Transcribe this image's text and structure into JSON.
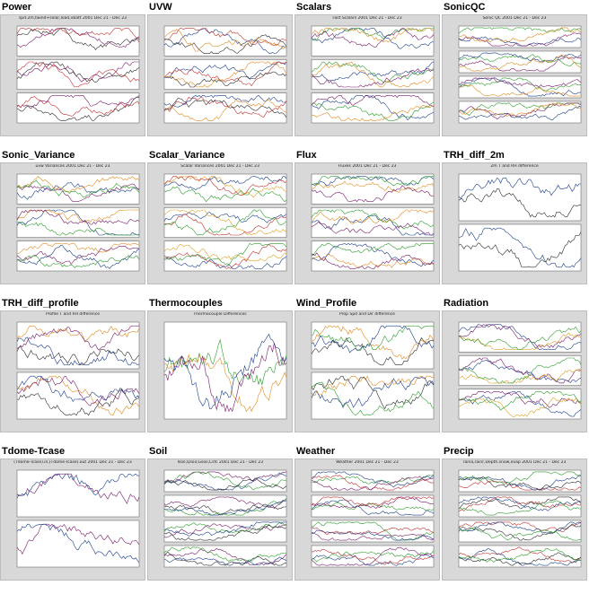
{
  "grid": {
    "columns": 4,
    "cells": [
      {
        "label": "Power",
        "plot_title": "spd.2m,twind+solar,load,vbatt 2001 Dec 21 - Dec 23",
        "panels": 3,
        "palette": [
          "#7a1a6a",
          "#2a2a2a",
          "#c03030"
        ]
      },
      {
        "label": "UVW",
        "plot_title": "",
        "panels": 3,
        "palette": [
          "#1a3d8c",
          "#c03030",
          "#2a2a2a",
          "#e08a1e"
        ]
      },
      {
        "label": "Scalars",
        "plot_title": "Fast Scalars 2001 Dec 21 - Dec 23",
        "panels": 3,
        "palette": [
          "#1a3d8c",
          "#2a9c2a",
          "#e08a1e",
          "#7a1a6a"
        ]
      },
      {
        "label": "SonicQC",
        "plot_title": "Sonic QC 2001 Dec 21 - Dec 23",
        "panels": 4,
        "palette": [
          "#2a9c2a",
          "#1a3d8c",
          "#7a1a6a",
          "#e08a1e"
        ]
      },
      {
        "label": "Sonic_Variance",
        "plot_title": "uvw Variances 2001 Dec 21 - Dec 23",
        "panels": 3,
        "palette": [
          "#1a3d8c",
          "#e08a1e",
          "#7a1a6a",
          "#2a9c2a"
        ]
      },
      {
        "label": "Scalar_Variance",
        "plot_title": "Scalar Variances 2001 Dec 21 - Dec 23",
        "panels": 3,
        "palette": [
          "#1a3d8c",
          "#e0a020",
          "#c03030",
          "#2a9c2a"
        ]
      },
      {
        "label": "Flux",
        "plot_title": "Fluxes 2001 Dec 21 - Dec 23",
        "panels": 3,
        "palette": [
          "#1a3d8c",
          "#2a9c2a",
          "#e08a1e",
          "#7a1a6a"
        ]
      },
      {
        "label": "TRH_diff_2m",
        "plot_title": "2m T and RH difference",
        "panels": 2,
        "palette": [
          "#1a3d8c",
          "#2a2a2a"
        ]
      },
      {
        "label": "TRH_diff_profile",
        "plot_title": "Profile T and RH difference",
        "panels": 2,
        "palette": [
          "#e08a1e",
          "#7a1a6a",
          "#2a2a2a",
          "#1a3d8c"
        ]
      },
      {
        "label": "Thermocouples",
        "plot_title": "Thermocouple Differences",
        "panels": 1,
        "palette": [
          "#2a9c2a",
          "#e08a1e",
          "#7a1a6a",
          "#1a3d8c"
        ]
      },
      {
        "label": "Wind_Profile",
        "plot_title": "Prop Spd and Dir difference",
        "panels": 2,
        "palette": [
          "#e08a1e",
          "#2a2a2a",
          "#2a9c2a",
          "#1a3d8c"
        ]
      },
      {
        "label": "Radiation",
        "plot_title": "",
        "panels": 3,
        "palette": [
          "#1a3d8c",
          "#7a1a6a",
          "#e0a020",
          "#2a9c2a"
        ]
      },
      {
        "label": "Tdome-Tcase",
        "plot_title": "(Tdome-Tcase).in,(Tdome-Tcase).out 2001 Dec 21 - Dec 23",
        "panels": 2,
        "palette": [
          "#7a1a6a",
          "#1a3d8c"
        ]
      },
      {
        "label": "Soil",
        "plot_title": "Tsoil,Qsoil,Gsoil,Csfc 2001 Dec 21 - Dec 23",
        "panels": 4,
        "palette": [
          "#7a1a6a",
          "#2a9c2a",
          "#1a3d8c",
          "#2a2a2a"
        ]
      },
      {
        "label": "Weather",
        "plot_title": "Weather 2001 Dec 21 - Dec 23",
        "panels": 4,
        "palette": [
          "#2a9c2a",
          "#1a3d8c",
          "#c03030",
          "#7a1a6a"
        ]
      },
      {
        "label": "Precip",
        "plot_title": "raina,rainr,Depth.snow,evap 2001 Dec 21 - Dec 23",
        "panels": 4,
        "palette": [
          "#c03030",
          "#1a3d8c",
          "#2a2a2a",
          "#2a9c2a"
        ]
      }
    ]
  }
}
